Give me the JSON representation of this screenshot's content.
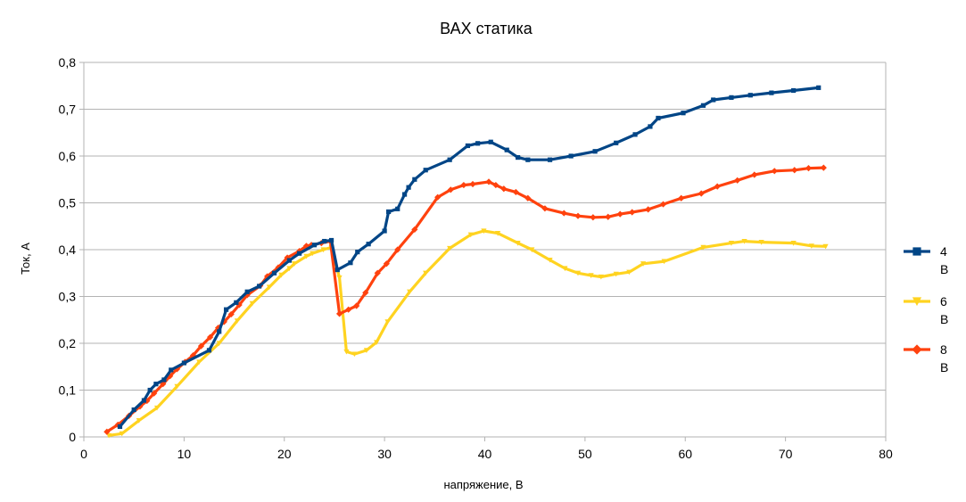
{
  "chart_data": {
    "type": "line",
    "title": "ВАХ статика",
    "xlabel": "напряжение, В",
    "ylabel": "Ток,   А",
    "xlim": [
      0,
      80
    ],
    "ylim": [
      0,
      0.8
    ],
    "x_ticks": [
      0,
      10,
      20,
      30,
      40,
      50,
      60,
      70,
      80
    ],
    "x_tick_labels": [
      "0",
      "10",
      "20",
      "30",
      "40",
      "50",
      "60",
      "70",
      "80"
    ],
    "y_ticks": [
      0,
      0.1,
      0.2,
      0.3,
      0.4,
      0.5,
      0.6,
      0.7,
      0.8
    ],
    "y_tick_labels": [
      "0",
      "0,1",
      "0,2",
      "0,3",
      "0,4",
      "0,5",
      "0,6",
      "0,7",
      "0,8"
    ],
    "grid": "horizontal",
    "legend_position": "right",
    "series": [
      {
        "name": "4 В",
        "legend_lines": [
          "4",
          "В"
        ],
        "color": "#004586",
        "marker": "square",
        "points": [
          [
            3.6,
            0.022
          ],
          [
            5,
            0.058
          ],
          [
            6,
            0.078
          ],
          [
            6.6,
            0.1
          ],
          [
            7.2,
            0.113
          ],
          [
            8,
            0.122
          ],
          [
            8.7,
            0.143
          ],
          [
            10,
            0.158
          ],
          [
            12.5,
            0.185
          ],
          [
            13.5,
            0.225
          ],
          [
            14.2,
            0.272
          ],
          [
            15.2,
            0.287
          ],
          [
            16.3,
            0.31
          ],
          [
            17.5,
            0.322
          ],
          [
            19,
            0.35
          ],
          [
            20.5,
            0.377
          ],
          [
            21.5,
            0.392
          ],
          [
            23,
            0.41
          ],
          [
            24,
            0.418
          ],
          [
            24.7,
            0.42
          ],
          [
            25.3,
            0.357
          ],
          [
            26.6,
            0.372
          ],
          [
            27.3,
            0.395
          ],
          [
            28.4,
            0.412
          ],
          [
            30,
            0.44
          ],
          [
            30.4,
            0.481
          ],
          [
            31.3,
            0.487
          ],
          [
            32,
            0.518
          ],
          [
            32.4,
            0.533
          ],
          [
            33,
            0.55
          ],
          [
            34.1,
            0.57
          ],
          [
            36.5,
            0.592
          ],
          [
            38.3,
            0.622
          ],
          [
            39.3,
            0.627
          ],
          [
            40.6,
            0.63
          ],
          [
            42.2,
            0.613
          ],
          [
            43.3,
            0.597
          ],
          [
            44.3,
            0.592
          ],
          [
            46.5,
            0.592
          ],
          [
            48.6,
            0.6
          ],
          [
            51,
            0.61
          ],
          [
            53.1,
            0.628
          ],
          [
            55,
            0.646
          ],
          [
            56.5,
            0.663
          ],
          [
            57.3,
            0.681
          ],
          [
            59.8,
            0.692
          ],
          [
            61.8,
            0.708
          ],
          [
            62.8,
            0.72
          ],
          [
            64.6,
            0.725
          ],
          [
            66.5,
            0.73
          ],
          [
            68.6,
            0.735
          ],
          [
            70.8,
            0.74
          ],
          [
            73.3,
            0.746
          ]
        ]
      },
      {
        "name": "6 В",
        "legend_lines": [
          "6",
          "В"
        ],
        "color": "#ffd320",
        "marker": "triangle-down",
        "points": [
          [
            2.5,
            0.003
          ],
          [
            3.8,
            0.007
          ],
          [
            5.5,
            0.035
          ],
          [
            7.3,
            0.062
          ],
          [
            9.3,
            0.108
          ],
          [
            11.5,
            0.16
          ],
          [
            13.5,
            0.2
          ],
          [
            15.3,
            0.248
          ],
          [
            16.8,
            0.285
          ],
          [
            18.5,
            0.32
          ],
          [
            19.7,
            0.346
          ],
          [
            20.5,
            0.36
          ],
          [
            21,
            0.37
          ],
          [
            22.2,
            0.386
          ],
          [
            22.8,
            0.392
          ],
          [
            23.9,
            0.4
          ],
          [
            24.7,
            0.405
          ],
          [
            25.5,
            0.34
          ],
          [
            26.2,
            0.182
          ],
          [
            27,
            0.177
          ],
          [
            28.2,
            0.185
          ],
          [
            29.2,
            0.202
          ],
          [
            30.3,
            0.246
          ],
          [
            32.5,
            0.31
          ],
          [
            34.1,
            0.35
          ],
          [
            36.5,
            0.403
          ],
          [
            38.6,
            0.432
          ],
          [
            39.9,
            0.44
          ],
          [
            41.3,
            0.435
          ],
          [
            43.3,
            0.414
          ],
          [
            44.7,
            0.4
          ],
          [
            46.5,
            0.378
          ],
          [
            48,
            0.36
          ],
          [
            49.3,
            0.35
          ],
          [
            50.6,
            0.345
          ],
          [
            51.6,
            0.342
          ],
          [
            53.1,
            0.348
          ],
          [
            54.4,
            0.352
          ],
          [
            55.8,
            0.37
          ],
          [
            57.9,
            0.375
          ],
          [
            61.8,
            0.405
          ],
          [
            64.6,
            0.414
          ],
          [
            65.9,
            0.418
          ],
          [
            67.6,
            0.416
          ],
          [
            70.8,
            0.414
          ],
          [
            72.6,
            0.408
          ],
          [
            74,
            0.407
          ]
        ]
      },
      {
        "name": "8 В",
        "legend_lines": [
          "8",
          "В"
        ],
        "color": "#ff420e",
        "marker": "diamond",
        "points": [
          [
            2.3,
            0.011
          ],
          [
            3.4,
            0.026
          ],
          [
            4.5,
            0.045
          ],
          [
            5.6,
            0.065
          ],
          [
            6.3,
            0.077
          ],
          [
            7,
            0.093
          ],
          [
            7.9,
            0.113
          ],
          [
            8.6,
            0.13
          ],
          [
            9.3,
            0.145
          ],
          [
            10.1,
            0.16
          ],
          [
            10.9,
            0.174
          ],
          [
            11.7,
            0.194
          ],
          [
            12.6,
            0.213
          ],
          [
            13.4,
            0.233
          ],
          [
            14,
            0.246
          ],
          [
            14.7,
            0.262
          ],
          [
            15.5,
            0.282
          ],
          [
            16.3,
            0.303
          ],
          [
            17.6,
            0.323
          ],
          [
            18.3,
            0.343
          ],
          [
            19.4,
            0.362
          ],
          [
            20.3,
            0.383
          ],
          [
            21.5,
            0.397
          ],
          [
            22.2,
            0.408
          ],
          [
            22.7,
            0.41
          ],
          [
            23.7,
            0.414
          ],
          [
            24.6,
            0.418
          ],
          [
            25.5,
            0.263
          ],
          [
            26.4,
            0.272
          ],
          [
            27.2,
            0.28
          ],
          [
            28.1,
            0.308
          ],
          [
            29.3,
            0.35
          ],
          [
            30.2,
            0.37
          ],
          [
            31.3,
            0.4
          ],
          [
            33,
            0.443
          ],
          [
            35.3,
            0.512
          ],
          [
            36.6,
            0.528
          ],
          [
            37.9,
            0.538
          ],
          [
            38.8,
            0.54
          ],
          [
            40.4,
            0.545
          ],
          [
            41.1,
            0.538
          ],
          [
            41.9,
            0.53
          ],
          [
            43.1,
            0.523
          ],
          [
            44.3,
            0.51
          ],
          [
            46,
            0.488
          ],
          [
            47.9,
            0.478
          ],
          [
            49.3,
            0.472
          ],
          [
            50.8,
            0.469
          ],
          [
            52.3,
            0.47
          ],
          [
            53.5,
            0.476
          ],
          [
            54.7,
            0.48
          ],
          [
            56.3,
            0.486
          ],
          [
            57.8,
            0.497
          ],
          [
            59.6,
            0.51
          ],
          [
            61.6,
            0.52
          ],
          [
            63.2,
            0.535
          ],
          [
            65.2,
            0.548
          ],
          [
            66.9,
            0.56
          ],
          [
            68.9,
            0.568
          ],
          [
            70.9,
            0.57
          ],
          [
            72.3,
            0.574
          ],
          [
            73.8,
            0.575
          ]
        ]
      }
    ]
  }
}
